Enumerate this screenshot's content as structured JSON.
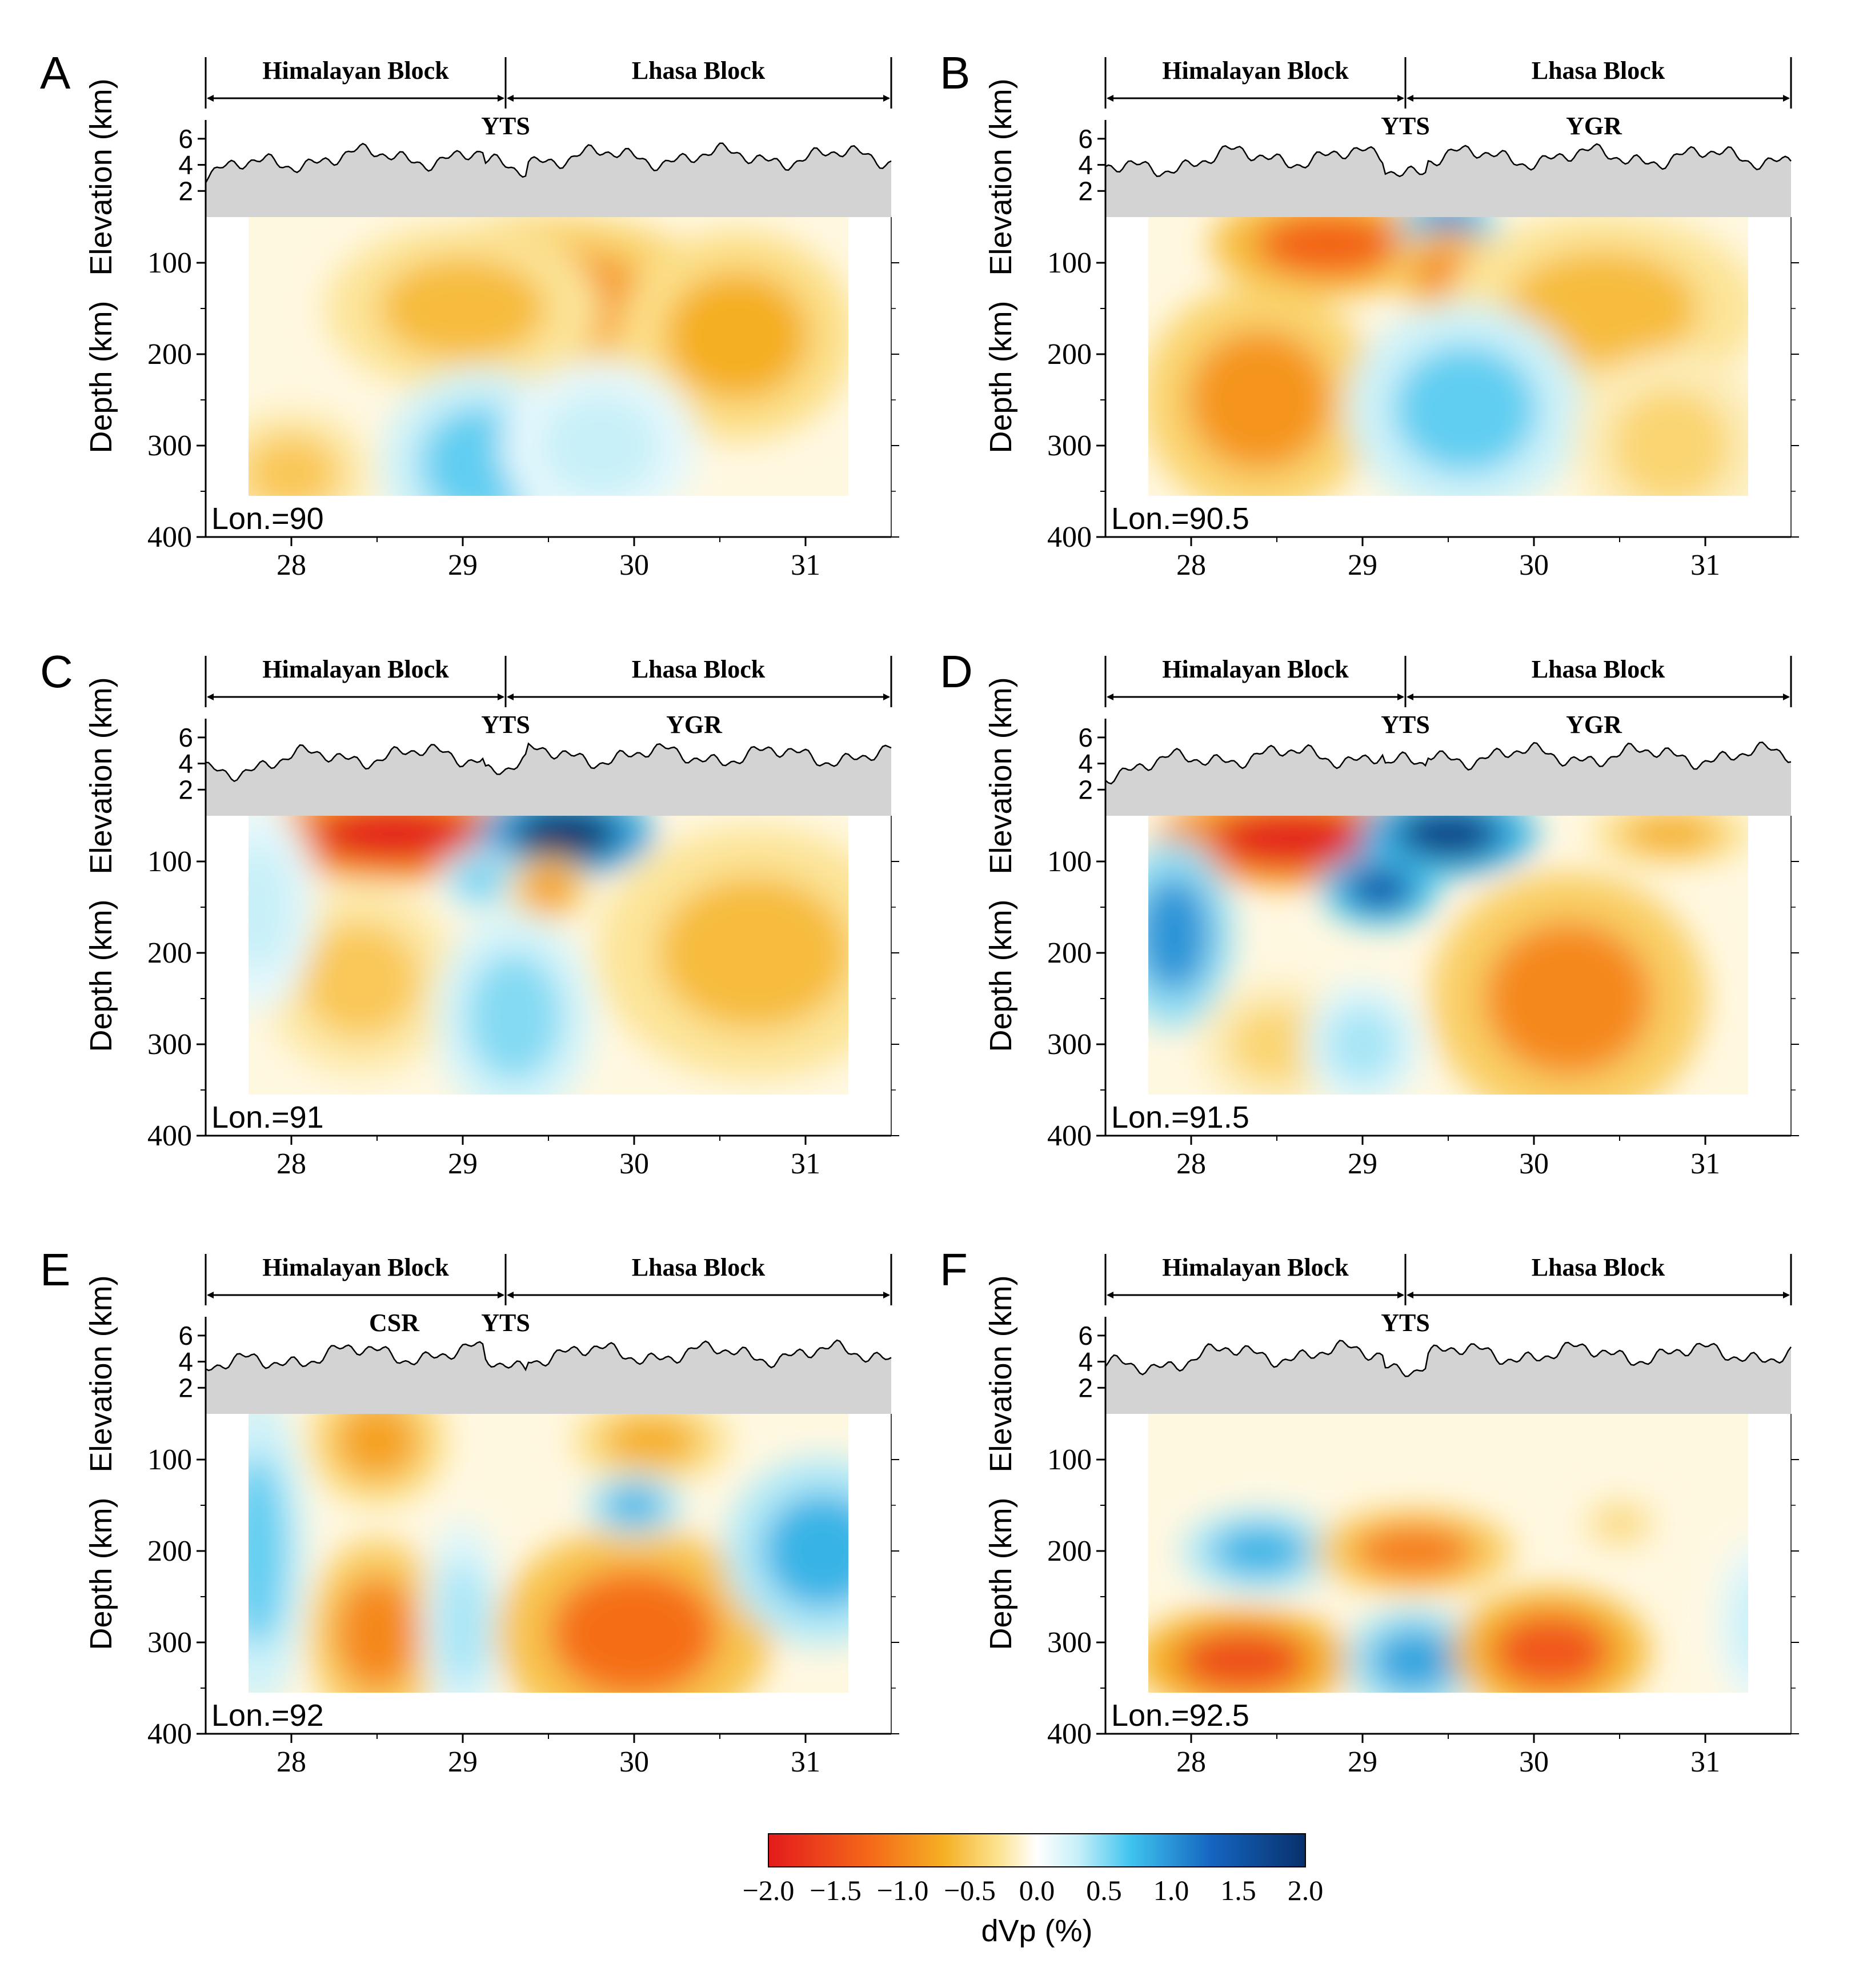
{
  "figure": {
    "panels": [
      {
        "letter": "A",
        "lon_label": "Lon.=90",
        "block_left": "Himalayan Block",
        "block_right": "Lhasa Block",
        "annotations": [
          "YTS"
        ],
        "ylabel_top": "Elevation (km)",
        "ylabel_bottom": "Depth (km)",
        "elev_ticks": [
          "2",
          "4",
          "6"
        ],
        "depth_ticks": [
          "100",
          "200",
          "300",
          "400"
        ],
        "x_ticks": [
          "28",
          "29",
          "30",
          "31"
        ],
        "anomalies": [
          {
            "lat": 29.5,
            "depth": 140,
            "dvp": -0.9,
            "rl": 0.9,
            "rd": 80
          },
          {
            "lat": 29.0,
            "depth": 150,
            "dvp": -0.6,
            "rl": 0.7,
            "rd": 80
          },
          {
            "lat": 30.6,
            "depth": 180,
            "dvp": -0.7,
            "rl": 0.6,
            "rd": 100
          },
          {
            "lat": 28.0,
            "depth": 330,
            "dvp": -0.5,
            "rl": 0.4,
            "rd": 60
          },
          {
            "lat": 29.1,
            "depth": 320,
            "dvp": 0.6,
            "rl": 0.5,
            "rd": 90
          },
          {
            "lat": 29.8,
            "depth": 300,
            "dvp": 0.3,
            "rl": 0.5,
            "rd": 80
          }
        ]
      },
      {
        "letter": "B",
        "lon_label": "Lon.=90.5",
        "block_left": "Himalayan Block",
        "block_right": "Lhasa Block",
        "annotations": [
          "YTS",
          "YGR"
        ],
        "ylabel_top": "Elevation (km)",
        "ylabel_bottom": "Depth (km)",
        "elev_ticks": [
          "2",
          "4",
          "6"
        ],
        "depth_ticks": [
          "100",
          "200",
          "300",
          "400"
        ],
        "x_ticks": [
          "28",
          "29",
          "30",
          "31"
        ],
        "anomalies": [
          {
            "lat": 28.8,
            "depth": 80,
            "dvp": -1.3,
            "rl": 0.6,
            "rd": 50
          },
          {
            "lat": 29.5,
            "depth": 60,
            "dvp": 1.2,
            "rl": 0.25,
            "rd": 30
          },
          {
            "lat": 29.5,
            "depth": 110,
            "dvp": -1.0,
            "rl": 0.3,
            "rd": 40
          },
          {
            "lat": 28.4,
            "depth": 250,
            "dvp": -0.9,
            "rl": 0.6,
            "rd": 110
          },
          {
            "lat": 30.4,
            "depth": 150,
            "dvp": -0.6,
            "rl": 0.8,
            "rd": 90
          },
          {
            "lat": 29.6,
            "depth": 260,
            "dvp": 0.6,
            "rl": 0.6,
            "rd": 100
          },
          {
            "lat": 30.8,
            "depth": 300,
            "dvp": -0.4,
            "rl": 0.5,
            "rd": 90
          }
        ]
      },
      {
        "letter": "C",
        "lon_label": "Lon.=91",
        "block_left": "Himalayan Block",
        "block_right": "Lhasa Block",
        "annotations": [
          "YTS",
          "YGR"
        ],
        "ylabel_top": "Elevation (km)",
        "ylabel_bottom": "Depth (km)",
        "elev_ticks": [
          "2",
          "4",
          "6"
        ],
        "depth_ticks": [
          "100",
          "200",
          "300",
          "400"
        ],
        "x_ticks": [
          "28",
          "29",
          "30",
          "31"
        ],
        "anomalies": [
          {
            "lat": 28.6,
            "depth": 70,
            "dvp": -2.0,
            "rl": 0.7,
            "rd": 45
          },
          {
            "lat": 29.6,
            "depth": 70,
            "dvp": 2.0,
            "rl": 0.45,
            "rd": 40
          },
          {
            "lat": 29.1,
            "depth": 120,
            "dvp": 0.6,
            "rl": 0.2,
            "rd": 30
          },
          {
            "lat": 29.5,
            "depth": 130,
            "dvp": -0.9,
            "rl": 0.2,
            "rd": 30
          },
          {
            "lat": 28.4,
            "depth": 230,
            "dvp": -0.5,
            "rl": 0.5,
            "rd": 90
          },
          {
            "lat": 29.3,
            "depth": 270,
            "dvp": 0.5,
            "rl": 0.4,
            "rd": 100
          },
          {
            "lat": 30.7,
            "depth": 200,
            "dvp": -0.6,
            "rl": 0.8,
            "rd": 120
          },
          {
            "lat": 27.8,
            "depth": 150,
            "dvp": 0.3,
            "rl": 0.3,
            "rd": 100
          }
        ]
      },
      {
        "letter": "D",
        "lon_label": "Lon.=91.5",
        "block_left": "Himalayan Block",
        "block_right": "Lhasa Block",
        "annotations": [
          "YTS",
          "YGR"
        ],
        "ylabel_top": "Elevation (km)",
        "ylabel_bottom": "Depth (km)",
        "elev_ticks": [
          "2",
          "4",
          "6"
        ],
        "depth_ticks": [
          "100",
          "200",
          "300",
          "400"
        ],
        "x_ticks": [
          "28",
          "29",
          "30",
          "31"
        ],
        "anomalies": [
          {
            "lat": 28.6,
            "depth": 75,
            "dvp": -2.0,
            "rl": 0.7,
            "rd": 45
          },
          {
            "lat": 29.5,
            "depth": 70,
            "dvp": 1.8,
            "rl": 0.45,
            "rd": 40
          },
          {
            "lat": 29.1,
            "depth": 130,
            "dvp": 1.5,
            "rl": 0.3,
            "rd": 35
          },
          {
            "lat": 27.9,
            "depth": 180,
            "dvp": 1.0,
            "rl": 0.3,
            "rd": 90
          },
          {
            "lat": 30.2,
            "depth": 250,
            "dvp": -1.0,
            "rl": 0.7,
            "rd": 120
          },
          {
            "lat": 28.5,
            "depth": 300,
            "dvp": -0.4,
            "rl": 0.4,
            "rd": 60
          },
          {
            "lat": 29.0,
            "depth": 300,
            "dvp": 0.4,
            "rl": 0.3,
            "rd": 60
          },
          {
            "lat": 30.8,
            "depth": 70,
            "dvp": -0.7,
            "rl": 0.4,
            "rd": 30
          }
        ]
      },
      {
        "letter": "E",
        "lon_label": "Lon.=92",
        "block_left": "Himalayan Block",
        "block_right": "Lhasa Block",
        "annotations": [
          "CSR",
          "YTS"
        ],
        "ylabel_top": "Elevation (km)",
        "ylabel_bottom": "Depth (km)",
        "elev_ticks": [
          "2",
          "4",
          "6"
        ],
        "depth_ticks": [
          "100",
          "200",
          "300",
          "400"
        ],
        "x_ticks": [
          "28",
          "29",
          "30",
          "31"
        ],
        "anomalies": [
          {
            "lat": 28.5,
            "depth": 80,
            "dvp": -0.8,
            "rl": 0.35,
            "rd": 60
          },
          {
            "lat": 28.5,
            "depth": 290,
            "dvp": -1.0,
            "rl": 0.35,
            "rd": 90
          },
          {
            "lat": 27.8,
            "depth": 200,
            "dvp": 0.6,
            "rl": 0.25,
            "rd": 150
          },
          {
            "lat": 29.0,
            "depth": 280,
            "dvp": 0.4,
            "rl": 0.2,
            "rd": 100
          },
          {
            "lat": 30.0,
            "depth": 290,
            "dvp": -1.2,
            "rl": 0.7,
            "rd": 100
          },
          {
            "lat": 30.1,
            "depth": 80,
            "dvp": -0.7,
            "rl": 0.4,
            "rd": 40
          },
          {
            "lat": 30.0,
            "depth": 150,
            "dvp": 0.8,
            "rl": 0.25,
            "rd": 30
          },
          {
            "lat": 31.1,
            "depth": 200,
            "dvp": 0.8,
            "rl": 0.5,
            "rd": 90
          }
        ]
      },
      {
        "letter": "F",
        "lon_label": "Lon.=92.5",
        "block_left": "Himalayan Block",
        "block_right": "Lhasa Block",
        "annotations": [
          "YTS"
        ],
        "ylabel_top": "Elevation (km)",
        "ylabel_bottom": "Depth (km)",
        "elev_ticks": [
          "2",
          "4",
          "6"
        ],
        "depth_ticks": [
          "100",
          "200",
          "300",
          "400"
        ],
        "x_ticks": [
          "28",
          "29",
          "30",
          "31"
        ],
        "anomalies": [
          {
            "lat": 28.4,
            "depth": 200,
            "dvp": 0.8,
            "rl": 0.4,
            "rd": 40
          },
          {
            "lat": 29.3,
            "depth": 200,
            "dvp": -1.1,
            "rl": 0.5,
            "rd": 40
          },
          {
            "lat": 28.3,
            "depth": 320,
            "dvp": -1.5,
            "rl": 0.55,
            "rd": 50
          },
          {
            "lat": 29.3,
            "depth": 320,
            "dvp": 0.9,
            "rl": 0.35,
            "rd": 50
          },
          {
            "lat": 30.1,
            "depth": 310,
            "dvp": -1.4,
            "rl": 0.5,
            "rd": 60
          },
          {
            "lat": 30.5,
            "depth": 170,
            "dvp": -0.4,
            "rl": 0.2,
            "rd": 25
          },
          {
            "lat": 31.3,
            "depth": 280,
            "dvp": 0.3,
            "rl": 0.2,
            "rd": 80
          }
        ]
      }
    ],
    "colorbar": {
      "label": "dVp (%)",
      "ticks": [
        "−2.0",
        "−1.5",
        "−1.0",
        "−0.5",
        "0.0",
        "0.5",
        "1.0",
        "1.5",
        "2.0"
      ],
      "range": [
        -2.0,
        2.0
      ],
      "colors": [
        "#e31a1c",
        "#f5a623",
        "#fdf1c4",
        "#ffffff",
        "#c8f0f8",
        "#3fc3ee",
        "#1565c0",
        "#08306b"
      ]
    },
    "axes": {
      "lat_range": [
        27.5,
        31.5
      ],
      "depth_range": [
        50,
        400
      ],
      "elev_range": [
        0,
        7
      ]
    }
  }
}
